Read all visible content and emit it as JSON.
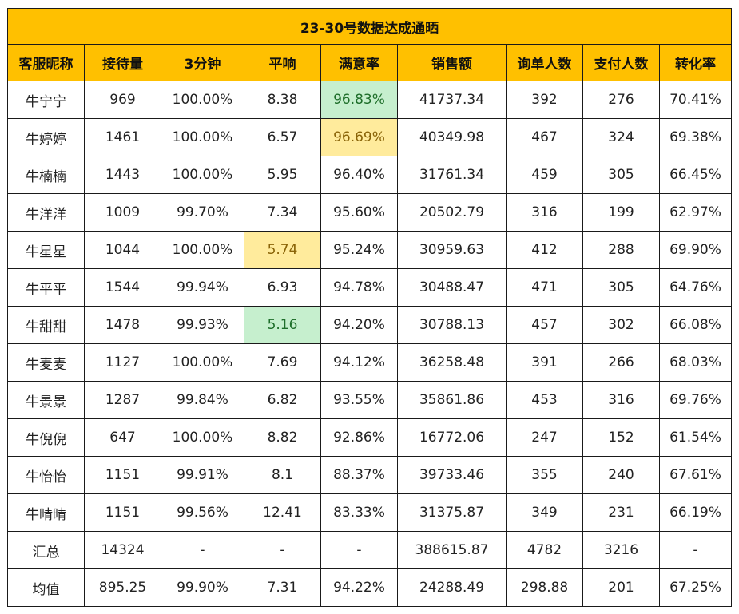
{
  "title": "23-30号数据达成通晒",
  "columns": [
    "客服昵称",
    "接待量",
    "3分钟",
    "平响",
    "满意率",
    "销售额",
    "询单人数",
    "支付人数",
    "转化率"
  ],
  "rows": [
    [
      "牛宁宁",
      "969",
      "100.00%",
      "8.38",
      "96.83%",
      "41737.34",
      "392",
      "276",
      "70.41%"
    ],
    [
      "牛婷婷",
      "1461",
      "100.00%",
      "6.57",
      "96.69%",
      "40349.98",
      "467",
      "324",
      "69.38%"
    ],
    [
      "牛楠楠",
      "1443",
      "100.00%",
      "5.95",
      "96.40%",
      "31761.34",
      "459",
      "305",
      "66.45%"
    ],
    [
      "牛洋洋",
      "1009",
      "99.70%",
      "7.34",
      "95.60%",
      "20502.79",
      "316",
      "199",
      "62.97%"
    ],
    [
      "牛星星",
      "1044",
      "100.00%",
      "5.74",
      "95.24%",
      "30959.63",
      "412",
      "288",
      "69.90%"
    ],
    [
      "牛平平",
      "1544",
      "99.94%",
      "6.93",
      "94.78%",
      "30488.47",
      "471",
      "305",
      "64.76%"
    ],
    [
      "牛甜甜",
      "1478",
      "99.93%",
      "5.16",
      "94.20%",
      "30788.13",
      "457",
      "302",
      "66.08%"
    ],
    [
      "牛麦麦",
      "1127",
      "100.00%",
      "7.69",
      "94.12%",
      "36258.48",
      "391",
      "266",
      "68.03%"
    ],
    [
      "牛景景",
      "1287",
      "99.84%",
      "6.82",
      "93.55%",
      "35861.86",
      "453",
      "316",
      "69.76%"
    ],
    [
      "牛倪倪",
      "647",
      "100.00%",
      "8.82",
      "92.86%",
      "16772.06",
      "247",
      "152",
      "61.54%"
    ],
    [
      "牛怡怡",
      "1151",
      "99.91%",
      "8.1",
      "88.37%",
      "39733.46",
      "355",
      "240",
      "67.61%"
    ],
    [
      "牛晴晴",
      "1151",
      "99.56%",
      "12.41",
      "83.33%",
      "31375.87",
      "349",
      "231",
      "66.19%"
    ],
    [
      "汇总",
      "14324",
      "-",
      "-",
      "-",
      "388615.87",
      "4782",
      "3216",
      "-"
    ],
    [
      "均值",
      "895.25",
      "99.90%",
      "7.31",
      "94.22%",
      "24288.49",
      "298.88",
      "201",
      "67.25%"
    ]
  ],
  "highlight_colors": {
    "green_fill": "#c6efce",
    "green_text": "#1e6e2a",
    "yellow_fill": "#ffeb9c",
    "yellow_text": "#8a6408",
    "header_fill": "#ffc000"
  },
  "highlights": [
    {
      "row": 0,
      "col": 4,
      "style": "green"
    },
    {
      "row": 1,
      "col": 4,
      "style": "yellow"
    },
    {
      "row": 4,
      "col": 3,
      "style": "yellow"
    },
    {
      "row": 6,
      "col": 3,
      "style": "green"
    }
  ]
}
